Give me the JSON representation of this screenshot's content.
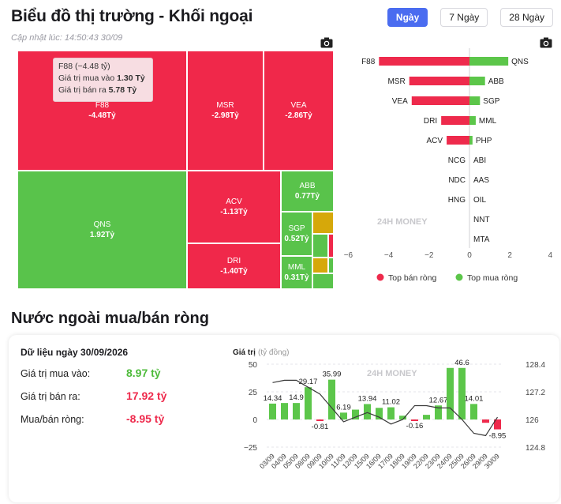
{
  "header": {
    "title": "Biểu đồ thị trường - Khối ngoại",
    "updated": "Cập nhật lúc: 14:50:43 30/09",
    "tabs": [
      "Ngày",
      "7 Ngày",
      "28 Ngày"
    ],
    "active_tab": "Ngày"
  },
  "treemap": {
    "tiles": [
      {
        "sym": "F88",
        "val": "-4.48Tỷ",
        "color": "red"
      },
      {
        "sym": "MSR",
        "val": "-2.98Tỷ",
        "color": "red"
      },
      {
        "sym": "VEA",
        "val": "-2.86Tỷ",
        "color": "red"
      },
      {
        "sym": "QNS",
        "val": "1.92Tỷ",
        "color": "green"
      },
      {
        "sym": "ACV",
        "val": "-1.13Tỷ",
        "color": "red"
      },
      {
        "sym": "DRI",
        "val": "-1.40Tỷ",
        "color": "red"
      },
      {
        "sym": "ABB",
        "val": "0.77Tỷ",
        "color": "green"
      },
      {
        "sym": "SGP",
        "val": "0.52Tỷ",
        "color": "green"
      },
      {
        "sym": "MML",
        "val": "0.31Tỷ",
        "color": "green"
      }
    ],
    "tooltip": {
      "title": "F88 (−4.48 tỷ)",
      "buy_label": "Giá trị mua vào",
      "buy_value": "1.30 Tỷ",
      "sell_label": "Giá trị bán ra",
      "sell_value": "5.78 Tỷ"
    }
  },
  "top_chart": {
    "sell_names": [
      "F88",
      "MSR",
      "VEA",
      "DRI",
      "ACV",
      "NCG",
      "NDC",
      "HNG",
      "",
      ""
    ],
    "sell_values": [
      -4.48,
      -2.98,
      -2.86,
      -1.4,
      -1.13,
      0,
      0,
      0,
      0,
      0
    ],
    "buy_names": [
      "QNS",
      "ABB",
      "SGP",
      "MML",
      "PHP",
      "ABI",
      "AAS",
      "OIL",
      "NNT",
      "MTA"
    ],
    "buy_values": [
      1.92,
      0.77,
      0.52,
      0.31,
      0.15,
      0,
      0,
      0,
      0,
      0
    ],
    "ticks": [
      "−6",
      "−4",
      "−2",
      "0",
      "2",
      "4"
    ],
    "legend_sell": "Top bán ròng",
    "legend_buy": "Top mua ròng",
    "watermark": "24H MONEY"
  },
  "net_section": {
    "title": "Nước ngoài mua/bán ròng",
    "date_label": "Dữ liệu ngày 30/09/2026",
    "rows": [
      {
        "label": "Giá trị mua vào:",
        "value": "8.97 tỷ",
        "tone": "green"
      },
      {
        "label": "Giá trị bán ra:",
        "value": "17.92 tỷ",
        "tone": "red"
      },
      {
        "label": "Mua/bán ròng:",
        "value": "-8.95 tỷ",
        "tone": "red"
      }
    ]
  },
  "chart_data": {
    "type": "bar",
    "ylabel": "Giá trị",
    "ylabel_unit": "(tỷ đồng)",
    "categories": [
      "03/09",
      "04/09",
      "05/09",
      "08/09",
      "09/09",
      "10/09",
      "11/09",
      "12/09",
      "15/09",
      "16/09",
      "17/09",
      "18/09",
      "19/09",
      "22/09",
      "23/09",
      "24/09",
      "25/09",
      "26/09",
      "29/09",
      "30/09"
    ],
    "values": [
      14.34,
      14.9,
      14.9,
      29.17,
      -0.81,
      35.99,
      6.19,
      8.9,
      13.94,
      10.5,
      11.02,
      3.4,
      -0.16,
      4.2,
      12.67,
      46.6,
      46.6,
      14.01,
      -3.0,
      -8.95
    ],
    "labels": [
      "14.34",
      "",
      "14.9",
      "29.17",
      "-0.81",
      "35.99",
      "6.19",
      "",
      "13.94",
      "",
      "11.02",
      "",
      "-0.16",
      "",
      "12.67",
      "",
      "46.6",
      "14.01",
      "",
      "-8.95"
    ],
    "ylim": [
      -25,
      50
    ],
    "yticks": [
      "50",
      "25",
      "0",
      "−25"
    ],
    "y2ticks": [
      "128.4",
      "127.2",
      "126",
      "124.8"
    ],
    "y2lim": [
      124.8,
      128.4
    ],
    "line": [
      127.6,
      127.7,
      127.7,
      127.4,
      127.1,
      126.5,
      125.9,
      126.1,
      126.3,
      126.1,
      125.8,
      126.0,
      126.6,
      126.6,
      126.5,
      126.5,
      126.0,
      125.4,
      125.3,
      126.1
    ],
    "watermark": "24H MONEY",
    "colors": {
      "positive": "#5cc64a",
      "negative": "#ee2a4c",
      "line": "#3a3a3a"
    }
  }
}
